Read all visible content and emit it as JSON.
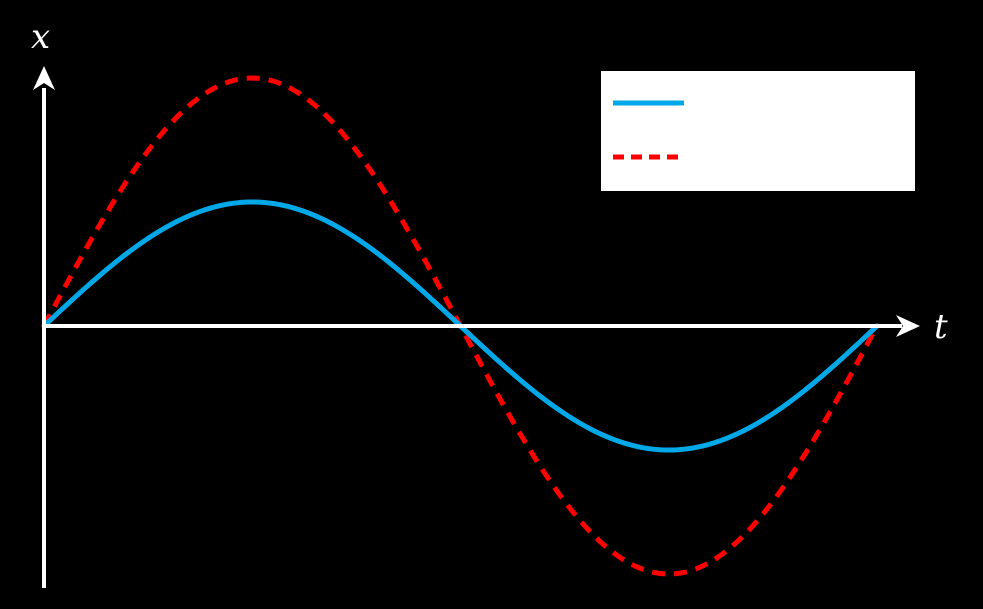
{
  "chart_data": {
    "type": "line",
    "xlabel": "t",
    "ylabel": "x",
    "xlim": [
      0,
      1
    ],
    "ylim": [
      -1.05,
      1
    ],
    "grid": false,
    "legend_position": "top-right",
    "legend_labels_visible": false,
    "series": [
      {
        "key": "small",
        "style": "solid",
        "color": "#00a8e8",
        "function": "sine",
        "amplitude": 0.5,
        "periods": 1
      },
      {
        "key": "large",
        "style": "dashed",
        "color": "#ff0000",
        "function": "sine",
        "amplitude": 1.0,
        "periods": 1
      }
    ]
  }
}
